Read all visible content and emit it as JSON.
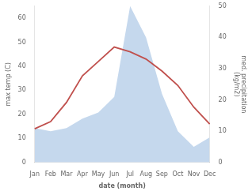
{
  "chart_data": {
    "type": "line",
    "categories": [
      "Jan",
      "Feb",
      "Mar",
      "Apr",
      "May",
      "Jun",
      "Jul",
      "Aug",
      "Sep",
      "Oct",
      "Nov",
      "Dec"
    ],
    "series": [
      {
        "type": "area",
        "axis": "y2",
        "color": "#c5d8ed",
        "values": [
          11,
          10,
          11,
          14,
          16,
          21,
          50,
          40,
          22,
          10,
          5,
          8
        ]
      },
      {
        "type": "line",
        "color": "#c0504d",
        "values": [
          14,
          17,
          25,
          36,
          42,
          48,
          46,
          43,
          38,
          32,
          23,
          16
        ]
      }
    ],
    "xlabel": "date (month)",
    "ylabel": "max temp (C)",
    "y2label": "med. precipitation\n(kg/m2)",
    "ylim": [
      0,
      65
    ],
    "yticks": [
      0,
      10,
      20,
      30,
      40,
      50,
      60
    ],
    "y2lim": [
      0,
      50
    ],
    "y2ticks": [
      0,
      10,
      20,
      30,
      40,
      50
    ],
    "grid": false
  }
}
